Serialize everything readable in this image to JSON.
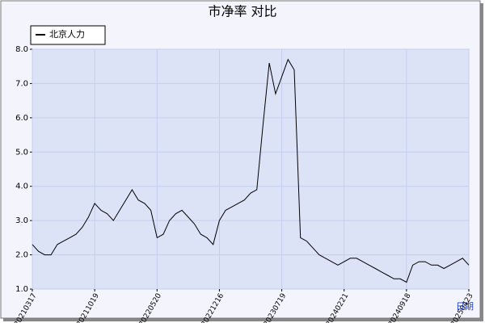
{
  "chart_data": {
    "type": "line",
    "title": "市净率 对比",
    "x_label": "日期",
    "categories": [
      "20210317",
      null,
      null,
      null,
      null,
      null,
      null,
      null,
      null,
      null,
      "20211019",
      null,
      null,
      null,
      null,
      null,
      null,
      null,
      null,
      null,
      "20220520",
      null,
      null,
      null,
      null,
      null,
      null,
      null,
      null,
      null,
      "20221216",
      null,
      null,
      null,
      null,
      null,
      null,
      null,
      null,
      null,
      "20230719",
      null,
      null,
      null,
      null,
      null,
      null,
      null,
      null,
      null,
      "20240221",
      null,
      null,
      null,
      null,
      null,
      null,
      null,
      null,
      null,
      "20240918",
      null,
      null,
      null,
      null,
      null,
      null,
      null,
      null,
      null,
      "20250423"
    ],
    "series": [
      {
        "name": "北京人力",
        "color": "#000000",
        "values": [
          2.3,
          2.1,
          2.0,
          2.0,
          2.3,
          2.4,
          2.5,
          2.6,
          2.8,
          3.1,
          3.5,
          3.3,
          3.2,
          3.0,
          3.3,
          3.6,
          3.9,
          3.6,
          3.5,
          3.3,
          2.5,
          2.6,
          3.0,
          3.2,
          3.3,
          3.1,
          2.9,
          2.6,
          2.5,
          2.3,
          3.0,
          3.3,
          3.4,
          3.5,
          3.6,
          3.8,
          3.9,
          5.8,
          7.6,
          6.7,
          7.2,
          7.7,
          7.4,
          2.5,
          2.4,
          2.2,
          2.0,
          1.9,
          1.8,
          1.7,
          1.8,
          1.9,
          1.9,
          1.8,
          1.7,
          1.6,
          1.5,
          1.4,
          1.3,
          1.3,
          1.2,
          1.7,
          1.8,
          1.8,
          1.7,
          1.7,
          1.6,
          1.7,
          1.8,
          1.9,
          1.7
        ]
      }
    ],
    "ylim": [
      1,
      8
    ],
    "yticks": [
      {
        "value": 1,
        "label": "1.0"
      },
      {
        "value": 2,
        "label": "2.0"
      },
      {
        "value": 3,
        "label": "3.0"
      },
      {
        "value": 4,
        "label": "4.0"
      },
      {
        "value": 5,
        "label": "5.0"
      },
      {
        "value": 6,
        "label": "6.0"
      },
      {
        "value": 7,
        "label": "7.0"
      },
      {
        "value": 8,
        "label": "8.0"
      }
    ],
    "grid": true,
    "legend": "top-left"
  }
}
